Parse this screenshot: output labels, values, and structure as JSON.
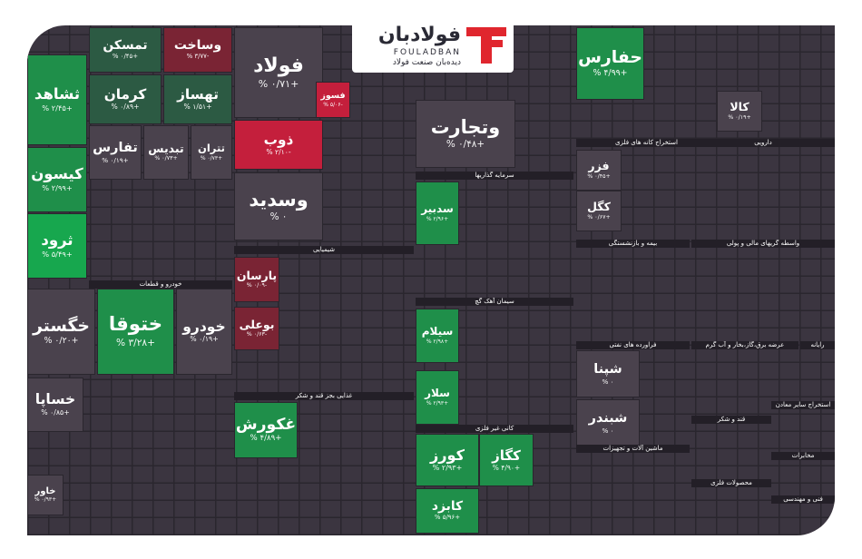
{
  "header": {
    "brand": "فولادبان",
    "brand_latin": "FOULADBAN",
    "tagline": "دیده‌بان صنعت فولاد"
  },
  "sectors": [
    "خودرو و قطعات",
    "شیمیایی",
    "غذایی بجز قند و شکر",
    "سرمایه گذاریها",
    "سیمان آهک گچ",
    "کانی غیر فلزی",
    "استخراج کانه های فلزی",
    "دارویی",
    "بیمه و بازنشستگی",
    "واسطه گریهای مالی و پولی",
    "فراورده های نفتی",
    "عرضه برق،گاز،بخار و آب گرم",
    "رایانه",
    "ماشین آلات و تجهیزات",
    "قند و شکر",
    "استخراج سایر معادن",
    "مخابرات",
    "محصولات فلزی",
    "فنی و مهندسی"
  ],
  "tiles": [
    {
      "symbol": "ثشاهد",
      "change": "+۲/۴۵ %",
      "tone": "green"
    },
    {
      "symbol": "کیسون",
      "change": "+۲/۹۹ %",
      "tone": "green"
    },
    {
      "symbol": "ثرود",
      "change": "+۵/۴۹ %",
      "tone": "bright"
    },
    {
      "symbol": "تمسکن",
      "change": "+۰/۴۵ %",
      "tone": "darkgreen"
    },
    {
      "symbol": "وساخت",
      "change": "-۳/۷۷ %",
      "tone": "darkred"
    },
    {
      "symbol": "کرمان",
      "change": "+۰/۸۹ %",
      "tone": "darkgreen"
    },
    {
      "symbol": "تهساز",
      "change": "+۱/۵۱ %",
      "tone": "darkgreen"
    },
    {
      "symbol": "تفارس",
      "change": "+۰/۱۹ %",
      "tone": "gray"
    },
    {
      "symbol": "تبدیس",
      "change": "+۰/۷۳ %",
      "tone": "gray"
    },
    {
      "symbol": "تتران",
      "change": "+۰/۷۳ %",
      "tone": "gray"
    },
    {
      "symbol": "فولاد",
      "change": "+۰/۷۱ %",
      "tone": "gray"
    },
    {
      "symbol": "ذوب",
      "change": "-۲/۱۰ %",
      "tone": "red"
    },
    {
      "symbol": "وسدید",
      "change": "۰ %",
      "tone": "gray"
    },
    {
      "symbol": "خگستر",
      "change": "+۰/۲۰ %",
      "tone": "gray"
    },
    {
      "symbol": "ختوقا",
      "change": "+۳/۲۸ %",
      "tone": "green"
    },
    {
      "symbol": "خودرو",
      "change": "+۰/۱۹ %",
      "tone": "gray"
    },
    {
      "symbol": "خساپا",
      "change": "+۰/۸۵ %",
      "tone": "gray"
    },
    {
      "symbol": "وتجارت",
      "change": "+۰/۴۸ %",
      "tone": "gray"
    },
    {
      "symbol": "حفارس",
      "change": "+۴/۹۹ %",
      "tone": "green"
    },
    {
      "symbol": "کالا",
      "change": "+۰/۱۹ %",
      "tone": "gray"
    },
    {
      "symbol": "پارسان",
      "change": "-۰/۰۹ %",
      "tone": "darkred"
    },
    {
      "symbol": "بوعلی",
      "change": "-۰/۶۳ %",
      "tone": "darkred"
    },
    {
      "symbol": "سدبیر",
      "change": "+۲/۹۶ %",
      "tone": "green"
    },
    {
      "symbol": "سیلام",
      "change": "+۲/۹۸ %",
      "tone": "green"
    },
    {
      "symbol": "سلار",
      "change": "+۲/۹۳ %",
      "tone": "green"
    },
    {
      "symbol": "غکورش",
      "change": "+۴/۸۹ %",
      "tone": "green"
    },
    {
      "symbol": "کورز",
      "change": "+۲/۹۳ %",
      "tone": "green"
    },
    {
      "symbol": "کابزد",
      "change": "+۵/۹۶ %",
      "tone": "green"
    },
    {
      "symbol": "کگل",
      "change": "+۰/۶۷ %",
      "tone": "gray"
    },
    {
      "symbol": "فزر",
      "change": "+۰/۴۵ %",
      "tone": "gray"
    },
    {
      "symbol": "شپنا",
      "change": "۰ %",
      "tone": "gray"
    },
    {
      "symbol": "شبندر",
      "change": "۰ %",
      "tone": "gray"
    },
    {
      "symbol": "کگاز",
      "change": "+۴/۹۰ %",
      "tone": "green"
    },
    {
      "symbol": "فسوز",
      "change": "-۵/۰۶ %",
      "tone": "red"
    },
    {
      "symbol": "خاور",
      "change": "+۰/۹۳ %",
      "tone": "gray"
    }
  ]
}
